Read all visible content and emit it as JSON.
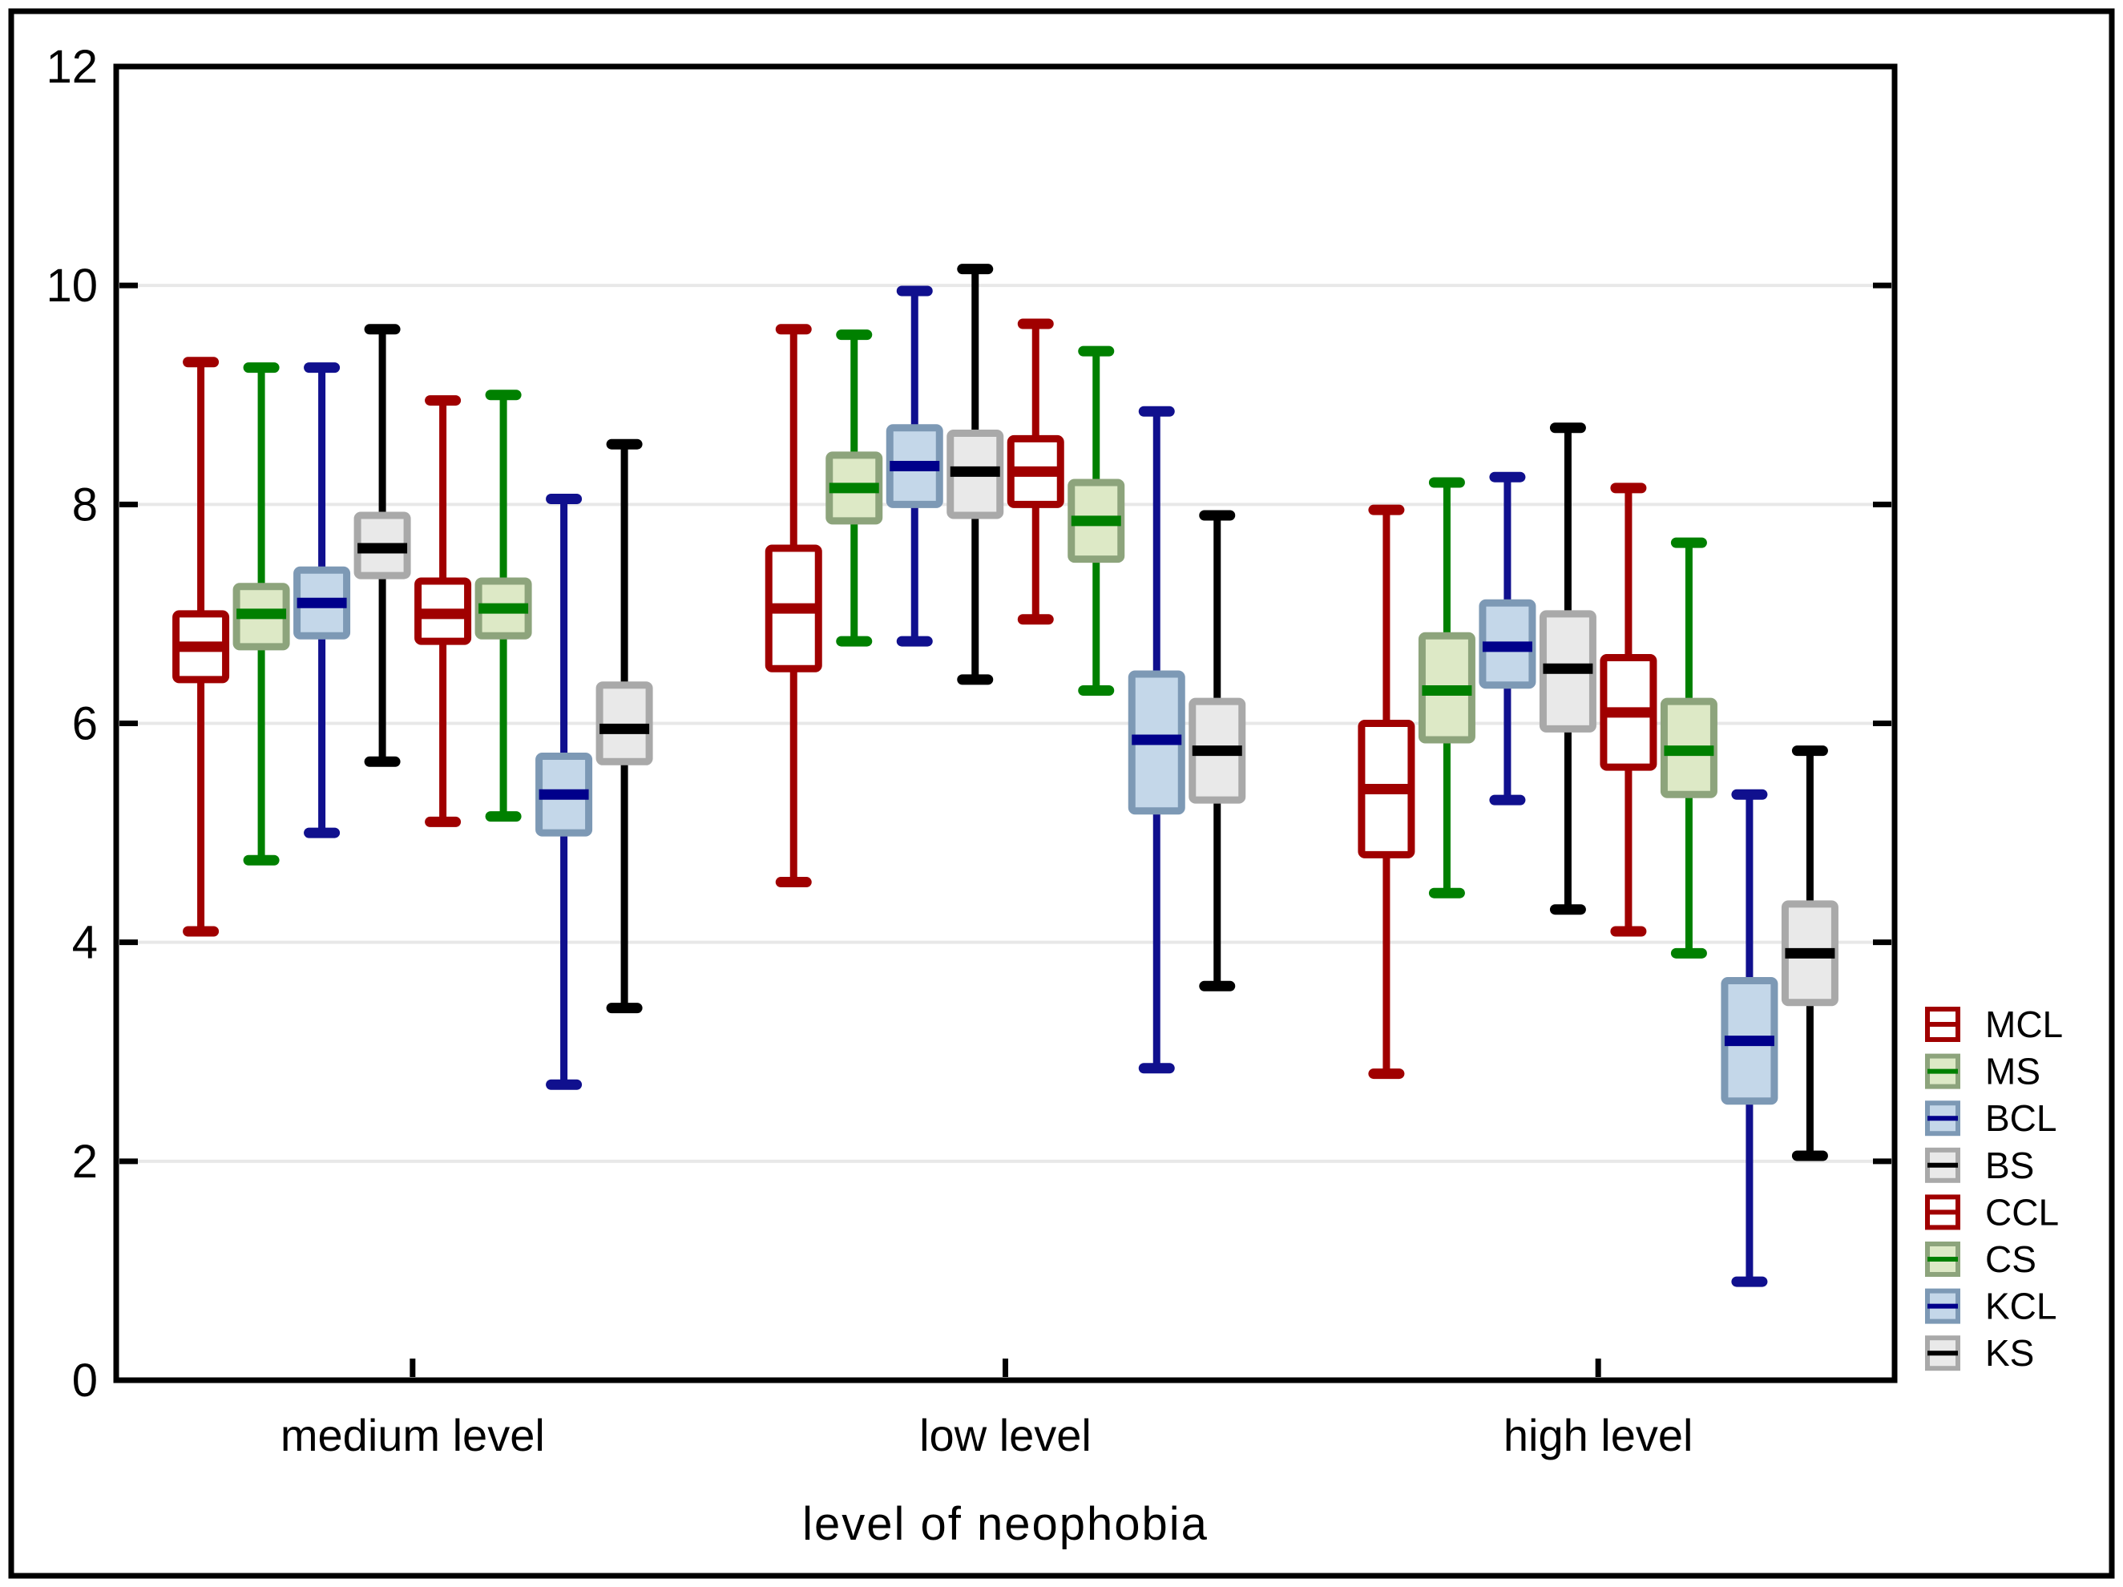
{
  "page": {
    "background": "#ffffff",
    "outer_border_color": "#000000",
    "frame_color": "#000000",
    "grid_color": "#e8e8e8",
    "text_color": "#000000"
  },
  "chart_data": {
    "type": "box",
    "title": "",
    "xlabel": "level of neophobia",
    "ylabel": "",
    "ylim": [
      0,
      12
    ],
    "yticks": [
      0,
      2,
      4,
      6,
      8,
      10,
      12
    ],
    "grid_values": [
      2,
      4,
      6,
      8,
      10
    ],
    "grid": true,
    "legend_position": "right-bottom",
    "categories": [
      "medium level",
      "low level",
      "high level"
    ],
    "series": [
      {
        "name": "MCL",
        "line_color": "#a00000",
        "border_color": "#a00000",
        "fill": "#ffffff",
        "median_color": "#a00000",
        "boxes": [
          {
            "low": 4.1,
            "q1": 6.4,
            "median": 6.7,
            "q3": 7.0,
            "high": 9.3
          },
          {
            "low": 4.55,
            "q1": 6.5,
            "median": 7.05,
            "q3": 7.6,
            "high": 9.6
          },
          {
            "low": 2.8,
            "q1": 4.8,
            "median": 5.4,
            "q3": 6.0,
            "high": 7.95
          }
        ]
      },
      {
        "name": "MS",
        "line_color": "#008000",
        "border_color": "#8da47c",
        "fill": "#dde9c6",
        "median_color": "#008000",
        "boxes": [
          {
            "low": 4.75,
            "q1": 6.7,
            "median": 7.0,
            "q3": 7.25,
            "high": 9.25
          },
          {
            "low": 6.75,
            "q1": 7.85,
            "median": 8.15,
            "q3": 8.45,
            "high": 9.55
          },
          {
            "low": 4.45,
            "q1": 5.85,
            "median": 6.3,
            "q3": 6.8,
            "high": 8.2
          }
        ]
      },
      {
        "name": "BCL",
        "line_color": "#10108e",
        "border_color": "#7d99b5",
        "fill": "#c4d7e9",
        "median_color": "#00008b",
        "boxes": [
          {
            "low": 5.0,
            "q1": 6.8,
            "median": 7.1,
            "q3": 7.4,
            "high": 9.25
          },
          {
            "low": 6.75,
            "q1": 8.0,
            "median": 8.35,
            "q3": 8.7,
            "high": 9.95
          },
          {
            "low": 5.3,
            "q1": 6.35,
            "median": 6.7,
            "q3": 7.1,
            "high": 8.25
          }
        ]
      },
      {
        "name": "BS",
        "line_color": "#000000",
        "border_color": "#a9a9a9",
        "fill": "#e9e9e9",
        "median_color": "#000000",
        "boxes": [
          {
            "low": 5.65,
            "q1": 7.35,
            "median": 7.6,
            "q3": 7.9,
            "high": 9.6
          },
          {
            "low": 6.4,
            "q1": 7.9,
            "median": 8.3,
            "q3": 8.65,
            "high": 10.15
          },
          {
            "low": 4.3,
            "q1": 5.95,
            "median": 6.5,
            "q3": 7.0,
            "high": 8.7
          }
        ]
      },
      {
        "name": "CCL",
        "line_color": "#a00000",
        "border_color": "#a00000",
        "fill": "#ffffff",
        "median_color": "#a00000",
        "boxes": [
          {
            "low": 5.1,
            "q1": 6.75,
            "median": 7.0,
            "q3": 7.3,
            "high": 8.95
          },
          {
            "low": 6.95,
            "q1": 8.0,
            "median": 8.3,
            "q3": 8.6,
            "high": 9.65
          },
          {
            "low": 4.1,
            "q1": 5.6,
            "median": 6.1,
            "q3": 6.6,
            "high": 8.15
          }
        ]
      },
      {
        "name": "CS",
        "line_color": "#008000",
        "border_color": "#8da47c",
        "fill": "#dde9c6",
        "median_color": "#008000",
        "boxes": [
          {
            "low": 5.15,
            "q1": 6.8,
            "median": 7.05,
            "q3": 7.3,
            "high": 9.0
          },
          {
            "low": 6.3,
            "q1": 7.5,
            "median": 7.85,
            "q3": 8.2,
            "high": 9.4
          },
          {
            "low": 3.9,
            "q1": 5.35,
            "median": 5.75,
            "q3": 6.2,
            "high": 7.65
          }
        ]
      },
      {
        "name": "KCL",
        "line_color": "#10108e",
        "border_color": "#7d99b5",
        "fill": "#c4d7e9",
        "median_color": "#00008b",
        "boxes": [
          {
            "low": 2.7,
            "q1": 5.0,
            "median": 5.35,
            "q3": 5.7,
            "high": 8.05
          },
          {
            "low": 2.85,
            "q1": 5.2,
            "median": 5.85,
            "q3": 6.45,
            "high": 8.85
          },
          {
            "low": 0.9,
            "q1": 2.55,
            "median": 3.1,
            "q3": 3.65,
            "high": 5.35
          }
        ]
      },
      {
        "name": "KS",
        "line_color": "#000000",
        "border_color": "#a9a9a9",
        "fill": "#e9e9e9",
        "median_color": "#000000",
        "boxes": [
          {
            "low": 3.4,
            "q1": 5.65,
            "median": 5.95,
            "q3": 6.35,
            "high": 8.55
          },
          {
            "low": 3.6,
            "q1": 5.3,
            "median": 5.75,
            "q3": 6.2,
            "high": 7.9
          },
          {
            "low": 2.05,
            "q1": 3.45,
            "median": 3.9,
            "q3": 4.35,
            "high": 5.75
          }
        ]
      }
    ]
  }
}
